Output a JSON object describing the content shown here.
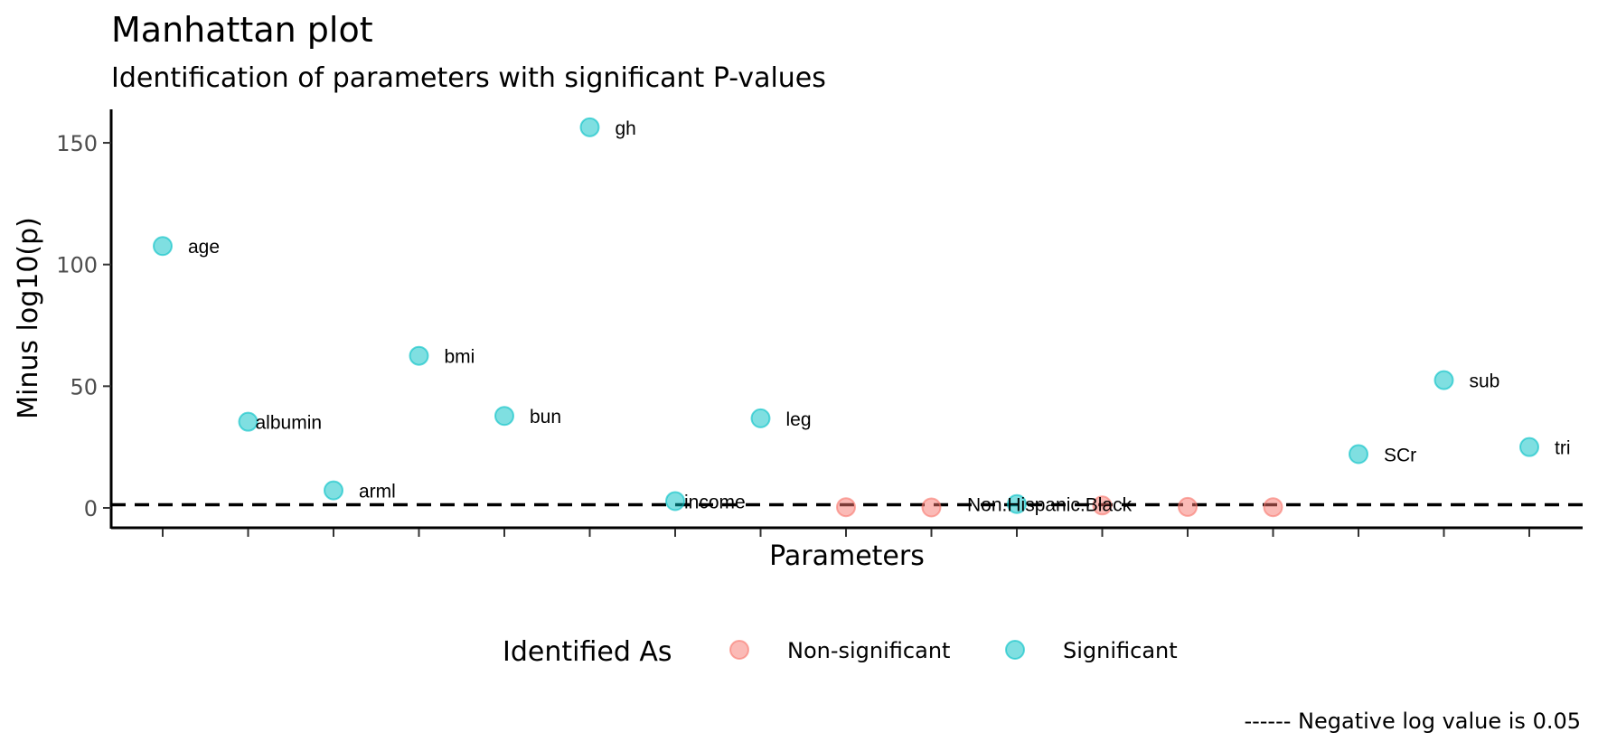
{
  "chart_data": {
    "type": "scatter",
    "title": "Manhattan plot",
    "subtitle": "Identification of parameters with significant P-values",
    "xlabel": "Parameters",
    "ylabel": "Minus log10(p)",
    "ylim": [
      -7,
      164
    ],
    "yticks": [
      0,
      50,
      100,
      150
    ],
    "grid": false,
    "threshold": 1.3,
    "categories": [
      "age",
      "albumin",
      "arml",
      "bmi",
      "bun",
      "gh",
      "income",
      "leg",
      "",
      "",
      "Non.Hispanic.Black",
      "",
      "",
      "",
      "SCr",
      "sub",
      "tri"
    ],
    "points": [
      {
        "x": 1,
        "y": 107.6,
        "label": "age",
        "group": "Significant"
      },
      {
        "x": 2,
        "y": 35.4,
        "label": "albumin",
        "group": "Significant"
      },
      {
        "x": 3,
        "y": 7.2,
        "label": "arml",
        "group": "Significant"
      },
      {
        "x": 4,
        "y": 62.5,
        "label": "bmi",
        "group": "Significant"
      },
      {
        "x": 5,
        "y": 37.8,
        "label": "bun",
        "group": "Significant"
      },
      {
        "x": 6,
        "y": 156.4,
        "label": "gh",
        "group": "Significant"
      },
      {
        "x": 7,
        "y": 2.8,
        "label": "income",
        "group": "Significant"
      },
      {
        "x": 8,
        "y": 36.8,
        "label": "leg",
        "group": "Significant"
      },
      {
        "x": 9,
        "y": 0.3,
        "label": "",
        "group": "Non-significant"
      },
      {
        "x": 10,
        "y": 0.2,
        "label": "",
        "group": "Non-significant"
      },
      {
        "x": 11,
        "y": 1.6,
        "label": "Non.Hispanic.Black",
        "group": "Significant"
      },
      {
        "x": 12,
        "y": 1.0,
        "label": "",
        "group": "Non-significant"
      },
      {
        "x": 13,
        "y": 0.4,
        "label": "",
        "group": "Non-significant"
      },
      {
        "x": 14,
        "y": 0.3,
        "label": "",
        "group": "Non-significant"
      },
      {
        "x": 15,
        "y": 22.1,
        "label": "SCr",
        "group": "Significant"
      },
      {
        "x": 16,
        "y": 52.5,
        "label": "sub",
        "group": "Significant"
      },
      {
        "x": 17,
        "y": 25.0,
        "label": "tri",
        "group": "Significant"
      }
    ],
    "legend": {
      "title": "Identified As",
      "placement": "bottom",
      "items": [
        {
          "name": "Non-significant",
          "color": "#F8766D"
        },
        {
          "name": "Significant",
          "color": "#00BFC4"
        }
      ]
    },
    "caption": "------ Negative log value is 0.05"
  }
}
